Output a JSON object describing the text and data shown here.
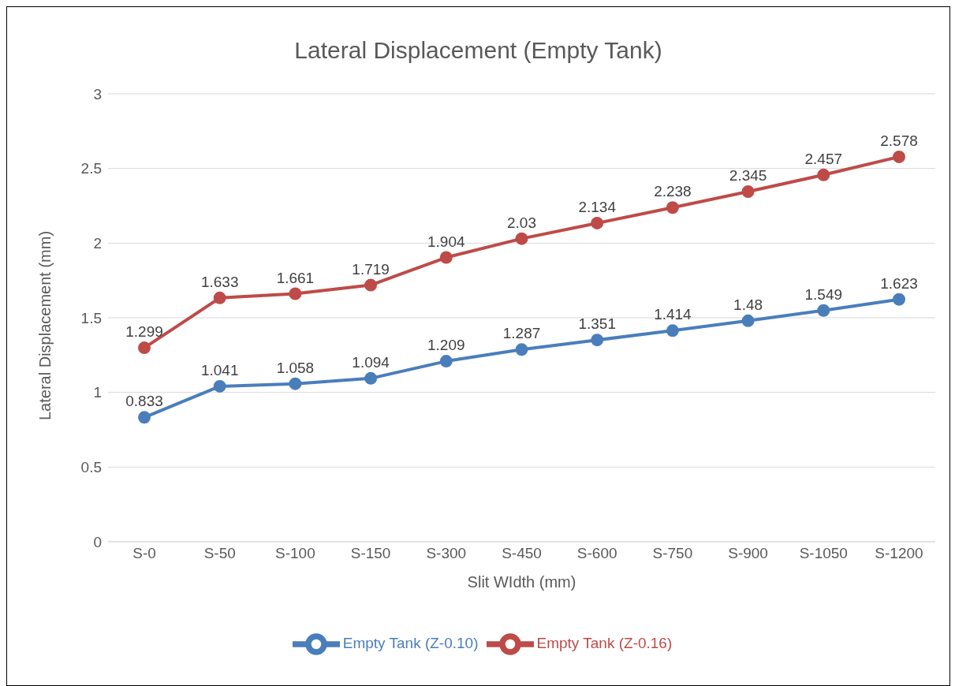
{
  "chart_data": {
    "type": "line",
    "title": "Lateral Displacement (Empty Tank)",
    "xlabel": "Slit WIdth (mm)",
    "ylabel": "Lateral Displacement (mm)",
    "categories": [
      "S-0",
      "S-50",
      "S-100",
      "S-150",
      "S-300",
      "S-450",
      "S-600",
      "S-750",
      "S-900",
      "S-1050",
      "S-1200"
    ],
    "series": [
      {
        "name": "Empty Tank (Z-0.10)",
        "color": "#4a7ebb",
        "values": [
          0.833,
          1.041,
          1.058,
          1.094,
          1.209,
          1.287,
          1.351,
          1.414,
          1.48,
          1.549,
          1.623
        ]
      },
      {
        "name": "Empty Tank (Z-0.16)",
        "color": "#be4b48",
        "values": [
          1.299,
          1.633,
          1.661,
          1.719,
          1.904,
          2.03,
          2.134,
          2.238,
          2.345,
          2.457,
          2.578
        ]
      }
    ],
    "ylim": [
      0,
      3
    ],
    "yticks": [
      0,
      0.5,
      1,
      1.5,
      2,
      2.5,
      3
    ],
    "grid": "y",
    "legend": "bottom",
    "marker": "circle",
    "line_style": "solid",
    "data_labels": true
  }
}
